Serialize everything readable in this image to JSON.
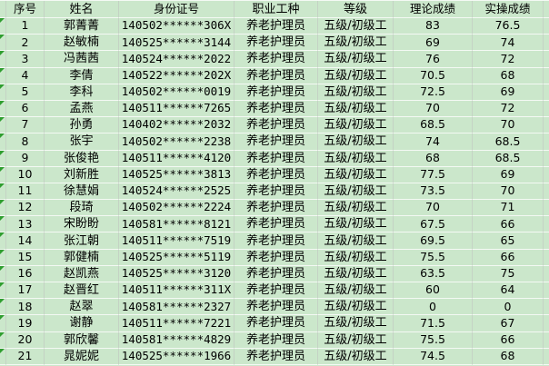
{
  "colors": {
    "cell_bg": "#cbe7cb",
    "grid_vertical": "#c4d2c4",
    "grid_horizontal": "#f4f9f4",
    "text": "#000000",
    "error_triangle": "#2f9e2f"
  },
  "table": {
    "column_keys": [
      "serial",
      "name",
      "id-number",
      "occupation",
      "level",
      "theory-score",
      "practical-score"
    ],
    "headers": [
      "序号",
      "姓名",
      "身份证号",
      "职业工种",
      "等级",
      "理论成绩",
      "实操成绩"
    ],
    "rows": [
      [
        "1",
        "郭菁菁",
        "140502******306X",
        "养老护理员",
        "五级/初级工",
        "83",
        "76.5"
      ],
      [
        "2",
        "赵敏楠",
        "140525******3144",
        "养老护理员",
        "五级/初级工",
        "69",
        "74"
      ],
      [
        "3",
        "冯茜茜",
        "140524******2022",
        "养老护理员",
        "五级/初级工",
        "76",
        "72"
      ],
      [
        "4",
        "李倩",
        "140522******202X",
        "养老护理员",
        "五级/初级工",
        "70.5",
        "68"
      ],
      [
        "5",
        "李科",
        "140502******0019",
        "养老护理员",
        "五级/初级工",
        "72.5",
        "69"
      ],
      [
        "6",
        "孟燕",
        "140511******7265",
        "养老护理员",
        "五级/初级工",
        "70",
        "72"
      ],
      [
        "7",
        "孙勇",
        "140402******2032",
        "养老护理员",
        "五级/初级工",
        "68.5",
        "70"
      ],
      [
        "8",
        "张宇",
        "140502******2238",
        "养老护理员",
        "五级/初级工",
        "74",
        "68.5"
      ],
      [
        "9",
        "张俊艳",
        "140511******4120",
        "养老护理员",
        "五级/初级工",
        "68",
        "68.5"
      ],
      [
        "10",
        "刘新胜",
        "140525******3813",
        "养老护理员",
        "五级/初级工",
        "77.5",
        "69"
      ],
      [
        "11",
        "徐慧娟",
        "140524******2525",
        "养老护理员",
        "五级/初级工",
        "73.5",
        "70"
      ],
      [
        "12",
        "段琦",
        "140502******2224",
        "养老护理员",
        "五级/初级工",
        "70",
        "71"
      ],
      [
        "13",
        "宋盼盼",
        "140581******8121",
        "养老护理员",
        "五级/初级工",
        "67.5",
        "66"
      ],
      [
        "14",
        "张江朝",
        "140511******7519",
        "养老护理员",
        "五级/初级工",
        "69.5",
        "65"
      ],
      [
        "15",
        "郭健楠",
        "140525******5119",
        "养老护理员",
        "五级/初级工",
        "75.5",
        "66"
      ],
      [
        "16",
        "赵凯燕",
        "140525******3120",
        "养老护理员",
        "五级/初级工",
        "63.5",
        "75"
      ],
      [
        "17",
        "赵晋红",
        "140511******311X",
        "养老护理员",
        "五级/初级工",
        "60",
        "64"
      ],
      [
        "18",
        "赵翠",
        "140581******2327",
        "养老护理员",
        "五级/初级工",
        "0",
        "0"
      ],
      [
        "19",
        "谢静",
        "140511******7221",
        "养老护理员",
        "五级/初级工",
        "71.5",
        "67"
      ],
      [
        "20",
        "郭欣馨",
        "140581******4829",
        "养老护理员",
        "五级/初级工",
        "75.5",
        "66"
      ],
      [
        "21",
        "晁妮妮",
        "140525******1966",
        "养老护理员",
        "五级/初级工",
        "74.5",
        "68"
      ]
    ]
  }
}
